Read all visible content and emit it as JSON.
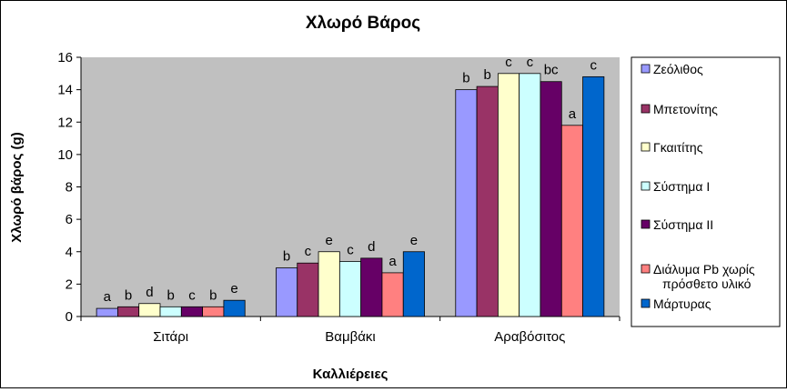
{
  "chart_data": {
    "type": "bar",
    "title": "Χλωρό Βάρος",
    "xlabel": "Καλλιέρειες",
    "ylabel": "Χλωρό βάρος (g)",
    "ylim": [
      0,
      16
    ],
    "yticks": [
      0,
      2,
      4,
      6,
      8,
      10,
      12,
      14,
      16
    ],
    "categories": [
      "Σιτάρι",
      "Βαμβάκι",
      "Αραβόσιτος"
    ],
    "grid": false,
    "plot_background": "#c0c0c0",
    "legend_position": "right",
    "series": [
      {
        "name": "Ζεόλιθος",
        "color": "#9999ff",
        "values": [
          0.5,
          3.0,
          14.0
        ],
        "labels": [
          "a",
          "b",
          "b"
        ]
      },
      {
        "name": "Μπετονίτης",
        "color": "#993366",
        "values": [
          0.6,
          3.3,
          14.2
        ],
        "labels": [
          "b",
          "c",
          "b"
        ]
      },
      {
        "name": "Γκαιτίτης",
        "color": "#ffffcc",
        "values": [
          0.8,
          4.0,
          15.0
        ],
        "labels": [
          "d",
          "e",
          "c"
        ]
      },
      {
        "name": "Σύστημα I",
        "color": "#ccffff",
        "values": [
          0.6,
          3.4,
          15.0
        ],
        "labels": [
          "b",
          "c",
          "c"
        ]
      },
      {
        "name": "Σύστημα II",
        "color": "#660066",
        "values": [
          0.6,
          3.6,
          14.5
        ],
        "labels": [
          "c",
          "d",
          "bc"
        ]
      },
      {
        "name": "Διάλυμα Pb χωρίς πρόσθετο υλικό",
        "name_lines": [
          "Διάλυμα Pb χωρίς",
          "πρόσθετο υλικό"
        ],
        "color": "#ff8080",
        "values": [
          0.6,
          2.7,
          11.8
        ],
        "labels": [
          "b",
          "a",
          "a"
        ]
      },
      {
        "name": "Μάρτυρας",
        "color": "#0066cc",
        "values": [
          1.0,
          4.0,
          14.8
        ],
        "labels": [
          "e",
          "e",
          "c"
        ]
      }
    ]
  }
}
